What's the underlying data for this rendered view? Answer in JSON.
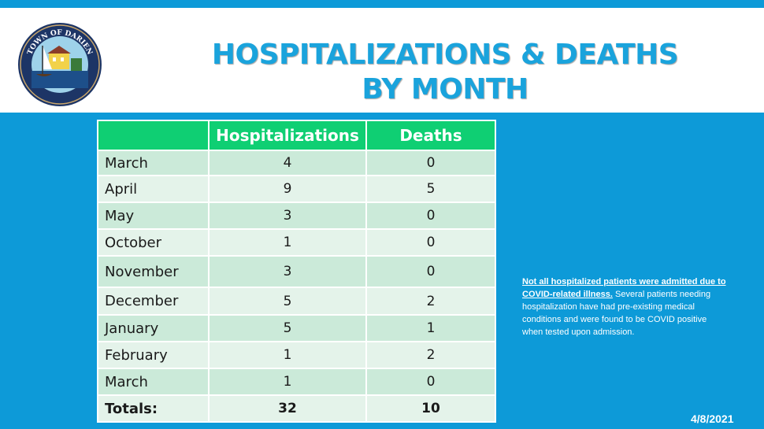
{
  "header": {
    "title_line1": "HOSPITALIZATIONS & DEATHS",
    "title_line2": "BY MONTH",
    "logo_text_top": "TOWN OF DARIEN"
  },
  "table": {
    "columns": [
      "",
      "Hospitalizations",
      "Deaths"
    ],
    "rows": [
      {
        "month": "March",
        "hospitalizations": "4",
        "deaths": "0"
      },
      {
        "month": "April",
        "hospitalizations": "9",
        "deaths": "5"
      },
      {
        "month": "May",
        "hospitalizations": "3",
        "deaths": "0"
      },
      {
        "month": "October",
        "hospitalizations": "1",
        "deaths": "0"
      },
      {
        "month": "November",
        "hospitalizations": "3",
        "deaths": "0"
      },
      {
        "month": "December",
        "hospitalizations": "5",
        "deaths": "2"
      },
      {
        "month": "January",
        "hospitalizations": "5",
        "deaths": "1"
      },
      {
        "month": "February",
        "hospitalizations": "1",
        "deaths": "2"
      },
      {
        "month": "March",
        "hospitalizations": "1",
        "deaths": "0"
      }
    ],
    "totals": {
      "label": "Totals:",
      "hospitalizations": "32",
      "deaths": "10"
    }
  },
  "note": {
    "highlight": "Not all hospitalized patients were admitted due to COVID-related illness.",
    "rest": " Several patients needing hospitalization have had pre-existing medical conditions and were found to be COVID positive when tested upon admission."
  },
  "date": "4/8/2021",
  "colors": {
    "background": "#0d9ad8",
    "title": "#1aa3dc",
    "table_header": "#0fcf73",
    "row_odd": "#cbead9",
    "row_even": "#e4f3ea"
  }
}
